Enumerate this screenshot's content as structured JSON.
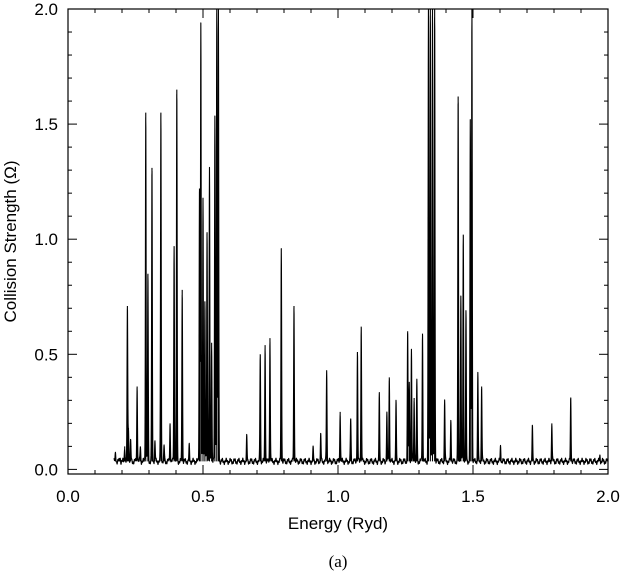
{
  "chart_data": {
    "type": "line",
    "title": "",
    "xlabel": "Energy (Ryd)",
    "ylabel": "Collision Strength (Ω)",
    "caption": "(a)",
    "xlim": [
      0.0,
      2.0
    ],
    "ylim": [
      -0.02,
      2.0
    ],
    "grid": false,
    "legend": "none",
    "line_color": "#000000",
    "x_ticks": [
      {
        "value": 0.0,
        "label": "0.0"
      },
      {
        "value": 0.5,
        "label": "0.5"
      },
      {
        "value": 1.0,
        "label": "1.0"
      },
      {
        "value": 1.5,
        "label": "1.5"
      },
      {
        "value": 2.0,
        "label": "2.0"
      }
    ],
    "y_ticks": [
      {
        "value": 0.0,
        "label": "0.0"
      },
      {
        "value": 0.5,
        "label": "0.5"
      },
      {
        "value": 1.0,
        "label": "1.0"
      },
      {
        "value": 1.5,
        "label": "1.5"
      },
      {
        "value": 2.0,
        "label": "2.0"
      }
    ],
    "energy_range": [
      0.17,
      2.0
    ],
    "background_level": 0.035,
    "resonances": [
      {
        "x": 0.176,
        "y": 0.07
      },
      {
        "x": 0.193,
        "y": 0.05
      },
      {
        "x": 0.21,
        "y": 0.1
      },
      {
        "x": 0.22,
        "y": 0.71
      },
      {
        "x": 0.224,
        "y": 0.18
      },
      {
        "x": 0.232,
        "y": 0.12
      },
      {
        "x": 0.256,
        "y": 0.36
      },
      {
        "x": 0.268,
        "y": 0.1
      },
      {
        "x": 0.288,
        "y": 1.55
      },
      {
        "x": 0.296,
        "y": 0.85
      },
      {
        "x": 0.311,
        "y": 1.31
      },
      {
        "x": 0.322,
        "y": 0.12
      },
      {
        "x": 0.344,
        "y": 1.55
      },
      {
        "x": 0.356,
        "y": 0.1
      },
      {
        "x": 0.378,
        "y": 0.2
      },
      {
        "x": 0.393,
        "y": 0.97
      },
      {
        "x": 0.403,
        "y": 1.65
      },
      {
        "x": 0.423,
        "y": 0.78
      },
      {
        "x": 0.449,
        "y": 0.1
      },
      {
        "x": 0.487,
        "y": 1.22
      },
      {
        "x": 0.492,
        "y": 1.93
      },
      {
        "x": 0.5,
        "y": 1.18
      },
      {
        "x": 0.507,
        "y": 0.73
      },
      {
        "x": 0.515,
        "y": 1.03
      },
      {
        "x": 0.524,
        "y": 1.3
      },
      {
        "x": 0.532,
        "y": 0.55
      },
      {
        "x": 0.544,
        "y": 1.53
      },
      {
        "x": 0.551,
        "y": 2.0
      },
      {
        "x": 0.557,
        "y": 2.0
      },
      {
        "x": 0.662,
        "y": 0.14
      },
      {
        "x": 0.712,
        "y": 0.5
      },
      {
        "x": 0.73,
        "y": 0.54
      },
      {
        "x": 0.748,
        "y": 0.57
      },
      {
        "x": 0.79,
        "y": 0.96
      },
      {
        "x": 0.837,
        "y": 0.71
      },
      {
        "x": 0.908,
        "y": 0.09
      },
      {
        "x": 0.936,
        "y": 0.15
      },
      {
        "x": 0.958,
        "y": 0.43
      },
      {
        "x": 1.008,
        "y": 0.25
      },
      {
        "x": 1.047,
        "y": 0.22
      },
      {
        "x": 1.072,
        "y": 0.51
      },
      {
        "x": 1.086,
        "y": 0.62
      },
      {
        "x": 1.153,
        "y": 0.32
      },
      {
        "x": 1.181,
        "y": 0.24
      },
      {
        "x": 1.19,
        "y": 0.4
      },
      {
        "x": 1.215,
        "y": 0.29
      },
      {
        "x": 1.258,
        "y": 0.6
      },
      {
        "x": 1.264,
        "y": 0.38
      },
      {
        "x": 1.272,
        "y": 0.52
      },
      {
        "x": 1.282,
        "y": 0.31
      },
      {
        "x": 1.292,
        "y": 0.39
      },
      {
        "x": 1.313,
        "y": 0.59
      },
      {
        "x": 1.335,
        "y": 2.0
      },
      {
        "x": 1.342,
        "y": 2.0
      },
      {
        "x": 1.35,
        "y": 2.0
      },
      {
        "x": 1.358,
        "y": 2.0
      },
      {
        "x": 1.395,
        "y": 0.3
      },
      {
        "x": 1.418,
        "y": 0.21
      },
      {
        "x": 1.445,
        "y": 1.62
      },
      {
        "x": 1.455,
        "y": 0.75
      },
      {
        "x": 1.464,
        "y": 1.02
      },
      {
        "x": 1.474,
        "y": 0.68
      },
      {
        "x": 1.49,
        "y": 1.52
      },
      {
        "x": 1.496,
        "y": 2.0
      },
      {
        "x": 1.518,
        "y": 0.42
      },
      {
        "x": 1.532,
        "y": 0.36
      },
      {
        "x": 1.602,
        "y": 0.1
      },
      {
        "x": 1.72,
        "y": 0.18
      },
      {
        "x": 1.792,
        "y": 0.2
      },
      {
        "x": 1.862,
        "y": 0.31
      },
      {
        "x": 1.97,
        "y": 0.06
      }
    ]
  }
}
